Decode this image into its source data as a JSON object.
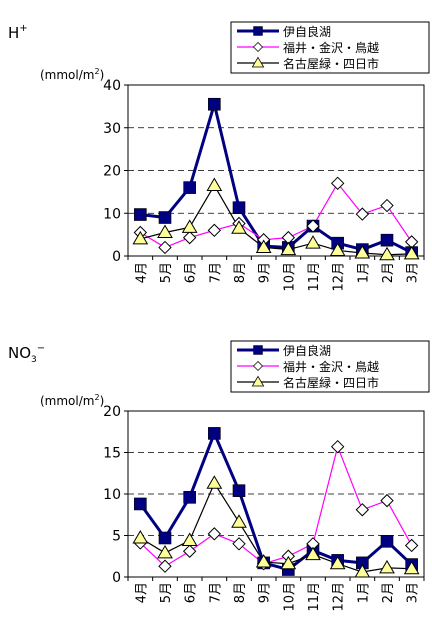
{
  "chart_data": [
    {
      "type": "line",
      "title": "H+",
      "title_main": "H",
      "title_sup": "+",
      "title_sub": "",
      "unit_prefix": "(mmol/m",
      "unit_sup": "2",
      "unit_suffix": ")",
      "ylim": [
        0,
        40
      ],
      "yticks": [
        "0",
        "10",
        "20",
        "30",
        "40"
      ],
      "categories": [
        "4月",
        "5月",
        "6月",
        "7月",
        "8月",
        "9月",
        "10月",
        "11月",
        "12月",
        "1月",
        "2月",
        "3月"
      ],
      "grid": true,
      "legend_position": "top-right",
      "series": [
        {
          "name": "伊自良湖",
          "color": "#000080",
          "marker": "square",
          "values": [
            9.7,
            9.0,
            16.0,
            35.5,
            11.3,
            2.3,
            2.0,
            7.0,
            3.0,
            1.5,
            3.7,
            0.8
          ]
        },
        {
          "name": "福井・金沢・鳥越",
          "color": "#ff00ff",
          "marker": "diamond",
          "values": [
            5.5,
            2.0,
            4.3,
            6.0,
            7.6,
            3.8,
            4.3,
            7.0,
            17.0,
            9.8,
            11.8,
            3.3
          ]
        },
        {
          "name": "名古屋緑・四日市",
          "color": "#000000",
          "marker": "triangle",
          "values": [
            4.0,
            5.5,
            6.7,
            16.5,
            6.5,
            2.0,
            1.5,
            3.0,
            1.3,
            0.7,
            0.3,
            0.5
          ]
        }
      ]
    },
    {
      "type": "line",
      "title": "NO3−",
      "title_main": "NO",
      "title_sup": "−",
      "title_sub": "3",
      "unit_prefix": "(mmol/m",
      "unit_sup": "2",
      "unit_suffix": ")",
      "ylim": [
        0,
        20
      ],
      "yticks": [
        "0",
        "5",
        "10",
        "15",
        "20"
      ],
      "categories": [
        "4月",
        "5月",
        "6月",
        "7月",
        "8月",
        "9月",
        "10月",
        "11月",
        "12月",
        "1月",
        "2月",
        "3月"
      ],
      "grid": true,
      "legend_position": "top-right",
      "series": [
        {
          "name": "伊自良湖",
          "color": "#000080",
          "marker": "square",
          "values": [
            8.8,
            4.7,
            9.6,
            17.3,
            10.4,
            1.7,
            0.9,
            3.2,
            2.0,
            1.7,
            4.3,
            1.5
          ]
        },
        {
          "name": "福井・金沢・鳥越",
          "color": "#ff00ff",
          "marker": "diamond",
          "values": [
            4.1,
            1.3,
            3.1,
            5.2,
            4.0,
            1.6,
            2.5,
            4.0,
            15.7,
            8.1,
            9.2,
            3.8
          ]
        },
        {
          "name": "名古屋緑・四日市",
          "color": "#000000",
          "marker": "triangle",
          "values": [
            4.7,
            2.9,
            4.4,
            11.3,
            6.6,
            1.8,
            1.6,
            2.7,
            1.6,
            0.6,
            1.1,
            1.0
          ]
        }
      ]
    }
  ]
}
